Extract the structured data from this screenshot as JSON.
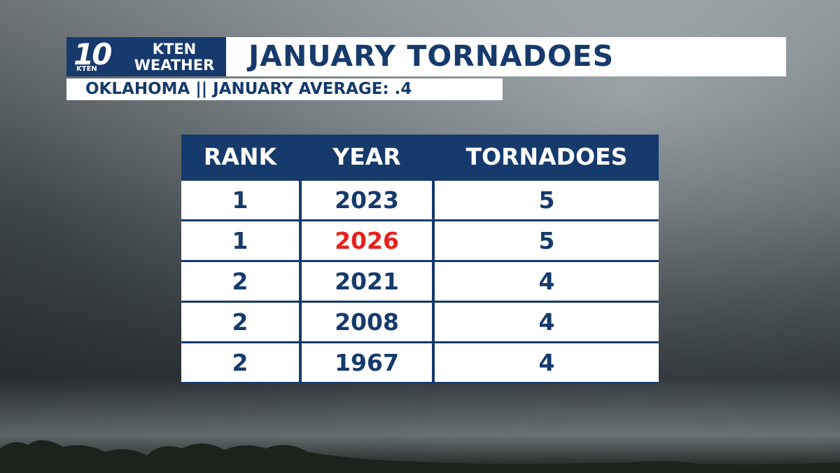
{
  "logo": {
    "channel": "10",
    "call_sign": "KTEN",
    "name": [
      "KTEN",
      "WEATHER"
    ]
  },
  "header": {
    "title": "JANUARY TORNADOES",
    "subtitle": "OKLAHOMA || JANUARY AVERAGE: .4"
  },
  "table": {
    "columns": [
      "RANK",
      "YEAR",
      "TORNADOES"
    ],
    "rows": [
      [
        1,
        2023,
        5
      ],
      [
        1,
        2026,
        5
      ],
      [
        2,
        2021,
        4
      ],
      [
        2,
        2008,
        4
      ],
      [
        2,
        1967,
        4
      ]
    ],
    "highlight": {
      "row": 1,
      "column": 1,
      "color": "#e8201c"
    }
  }
}
